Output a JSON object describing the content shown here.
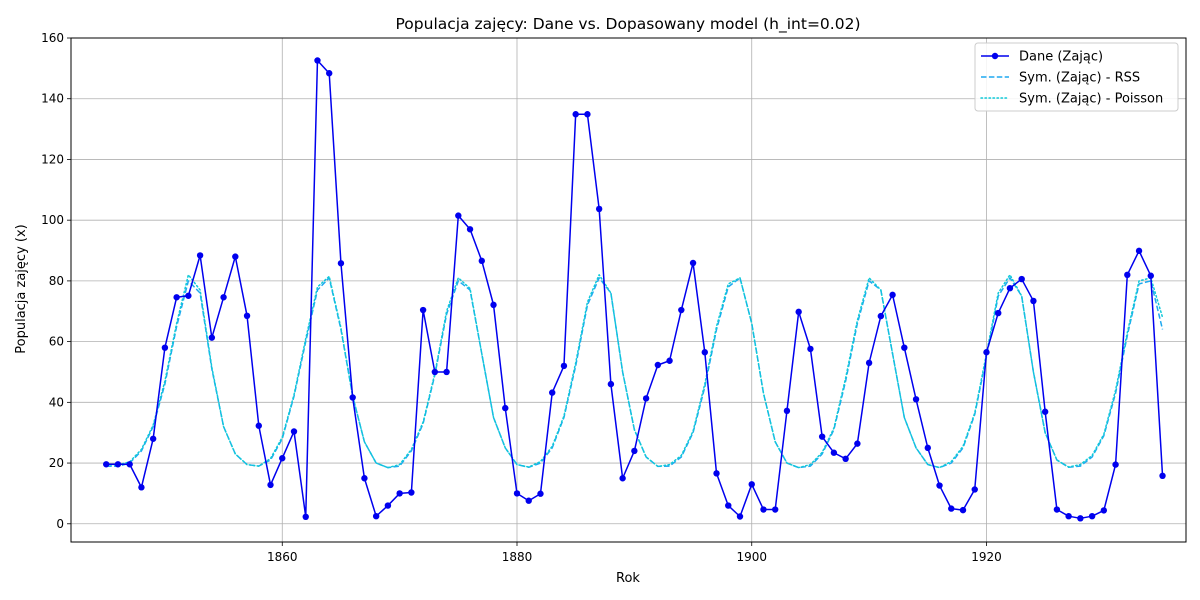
{
  "chart_data": {
    "type": "line",
    "title": "Populacja zajęcy: Dane vs. Dopasowany model (h_int=0.02)",
    "xlabel": "Rok",
    "ylabel": "Populacja zajęcy (x)",
    "xlim": [
      1842,
      1937
    ],
    "ylim": [
      -6,
      160
    ],
    "xticks": [
      1860,
      1880,
      1900,
      1920
    ],
    "yticks": [
      0,
      20,
      40,
      60,
      80,
      100,
      120,
      140,
      160
    ],
    "grid": true,
    "legend_position": "top-right",
    "x": [
      1845,
      1846,
      1847,
      1848,
      1849,
      1850,
      1851,
      1852,
      1853,
      1854,
      1855,
      1856,
      1857,
      1858,
      1859,
      1860,
      1861,
      1862,
      1863,
      1864,
      1865,
      1866,
      1867,
      1868,
      1869,
      1870,
      1871,
      1872,
      1873,
      1874,
      1875,
      1876,
      1877,
      1878,
      1879,
      1880,
      1881,
      1882,
      1883,
      1884,
      1885,
      1886,
      1887,
      1888,
      1889,
      1890,
      1891,
      1892,
      1893,
      1894,
      1895,
      1896,
      1897,
      1898,
      1899,
      1900,
      1901,
      1902,
      1903,
      1904,
      1905,
      1906,
      1907,
      1908,
      1909,
      1910,
      1911,
      1912,
      1913,
      1914,
      1915,
      1916,
      1917,
      1918,
      1919,
      1920,
      1921,
      1922,
      1923,
      1924,
      1925,
      1926,
      1927,
      1928,
      1929,
      1930,
      1931,
      1932,
      1933,
      1934,
      1935
    ],
    "series": [
      {
        "name": "Dane (Zając)",
        "color": "#0000ee",
        "style": "solid-markers",
        "values": [
          19.6,
          19.6,
          19.6,
          12,
          28,
          58,
          74.6,
          75.1,
          88.4,
          61.3,
          74.6,
          88,
          68.5,
          32.3,
          12.8,
          21.6,
          30.4,
          2.3,
          152.6,
          148.4,
          85.8,
          41.6,
          15,
          2.5,
          6,
          10,
          10.3,
          70.4,
          50,
          50,
          101.5,
          97,
          86.6,
          72.1,
          38.1,
          10,
          7.6,
          9.9,
          43.2,
          52,
          134.9,
          134.9,
          103.7,
          46,
          15,
          24,
          41.3,
          52.3,
          53.7,
          70.4,
          85.9,
          56.5,
          16.6,
          6,
          2.4,
          13,
          4.7,
          4.7,
          37.2,
          69.8,
          57.6,
          28.7,
          23.4,
          21.4,
          26.4,
          53,
          68.4,
          75.4,
          58,
          41,
          25,
          12.6,
          5,
          4.5,
          11.3,
          56.5,
          69.4,
          77.6,
          80.6,
          73.4,
          36.9,
          4.7,
          2.5,
          1.8,
          2.5,
          4.4,
          19.5,
          82,
          89.9,
          81.7,
          15.8
        ]
      },
      {
        "name": "Sym. (Zając) - RSS",
        "color": "#1fa9f0",
        "style": "dashed",
        "values": [
          19,
          18.9,
          20,
          24,
          32,
          46,
          65,
          80,
          76,
          51,
          32,
          23,
          19.5,
          19,
          21,
          28,
          42,
          60,
          77,
          81,
          64,
          42,
          27,
          20,
          18.5,
          19,
          24,
          33,
          49,
          69,
          80,
          77,
          56,
          35,
          25,
          19.5,
          18.6,
          20,
          25,
          35,
          52,
          72,
          81,
          76,
          50,
          31,
          22,
          18.9,
          19,
          22,
          30,
          45,
          64,
          78,
          81,
          66,
          43,
          27,
          20,
          18.5,
          19,
          23,
          31,
          47,
          66,
          80,
          77,
          56,
          35,
          25,
          19.5,
          18.5,
          20,
          25,
          36,
          55,
          75,
          81,
          75,
          50,
          30,
          21,
          18.6,
          19,
          22,
          29,
          43,
          62,
          79,
          80,
          64
        ]
      },
      {
        "name": "Sym. (Zając) - Poisson",
        "color": "#10cad8",
        "style": "dotted",
        "values": [
          19.5,
          19.4,
          20.4,
          24.5,
          32.5,
          47,
          66,
          82,
          77,
          51.5,
          32,
          23,
          19.5,
          19,
          21.5,
          28.5,
          42.5,
          61,
          78,
          81.5,
          64.5,
          42,
          27,
          20,
          18.5,
          19.5,
          24.5,
          33.5,
          49.5,
          70,
          81,
          77.5,
          56,
          35,
          25,
          19.5,
          18.7,
          20.5,
          25.5,
          35.5,
          53,
          73,
          82,
          76,
          50,
          31,
          22,
          18.9,
          19.5,
          22.5,
          30.5,
          46,
          65,
          79,
          81,
          66,
          43,
          27,
          20,
          18.5,
          19.5,
          23.5,
          31.5,
          48,
          67,
          81,
          77,
          56,
          35,
          25,
          19.5,
          18.5,
          20.5,
          25.5,
          36.5,
          56,
          76,
          82,
          75,
          50,
          30,
          21,
          18.7,
          19.5,
          22.5,
          29.5,
          44,
          63,
          80,
          81,
          68
        ]
      }
    ]
  }
}
